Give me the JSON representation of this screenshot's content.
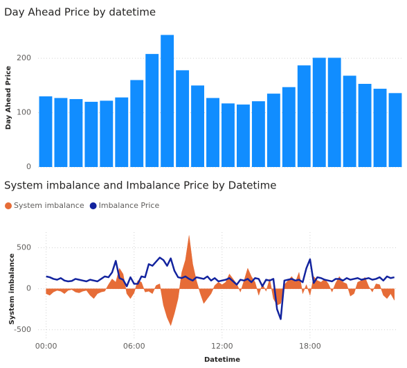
{
  "chart_data": [
    {
      "type": "bar",
      "title": "Day Ahead Price by datetime",
      "y_label": "Day Ahead Price",
      "categories": [
        null,
        null,
        null,
        null,
        null,
        null,
        null,
        null,
        null,
        null,
        null,
        null,
        null,
        null,
        null,
        null,
        null,
        null,
        null,
        null,
        null,
        null,
        null,
        null
      ],
      "values": [
        130,
        127,
        125,
        120,
        122,
        128,
        160,
        208,
        243,
        178,
        150,
        127,
        117,
        115,
        121,
        135,
        147,
        187,
        201,
        201,
        168,
        153,
        144,
        136
      ],
      "color": "#118DFF",
      "ylim": [
        0,
        255
      ],
      "yticks": [
        0,
        100,
        200
      ],
      "grid": true
    },
    {
      "type": "line",
      "title": "System imbalance and Imbalance Price by Datetime",
      "x_label": "Datetime",
      "y_label": "System imbalance",
      "legend": "top-left",
      "x": [
        0,
        0.25,
        0.5,
        0.75,
        1,
        1.25,
        1.5,
        1.75,
        2,
        2.25,
        2.5,
        2.75,
        3,
        3.25,
        3.5,
        3.75,
        4,
        4.25,
        4.5,
        4.75,
        5,
        5.25,
        5.5,
        5.75,
        6,
        6.25,
        6.5,
        6.75,
        7,
        7.25,
        7.5,
        7.75,
        8,
        8.25,
        8.5,
        8.75,
        9,
        9.25,
        9.5,
        9.75,
        10,
        10.25,
        10.5,
        10.75,
        11,
        11.25,
        11.5,
        11.75,
        12,
        12.25,
        12.5,
        12.75,
        13,
        13.25,
        13.5,
        13.75,
        14,
        14.25,
        14.5,
        14.75,
        15,
        15.25,
        15.5,
        15.75,
        16,
        16.25,
        16.5,
        16.75,
        17,
        17.25,
        17.5,
        17.75,
        18,
        18.25,
        18.5,
        18.75,
        19,
        19.25,
        19.5,
        19.75,
        20,
        20.25,
        20.5,
        20.75,
        21,
        21.25,
        21.5,
        21.75,
        22,
        22.25,
        22.5,
        22.75,
        23,
        23.25,
        23.5,
        23.75
      ],
      "series": [
        {
          "name": "System imbalance",
          "color": "#E66C37",
          "kind": "area",
          "values": [
            -60,
            -80,
            -40,
            -20,
            -30,
            -60,
            -20,
            -10,
            -40,
            -50,
            -30,
            -20,
            -80,
            -120,
            -60,
            -40,
            -30,
            50,
            120,
            80,
            250,
            180,
            -60,
            -120,
            -50,
            100,
            80,
            -40,
            -30,
            -60,
            40,
            60,
            -200,
            -350,
            -450,
            -300,
            -120,
            200,
            350,
            650,
            300,
            100,
            -50,
            -180,
            -120,
            -60,
            40,
            80,
            50,
            80,
            180,
            120,
            60,
            -40,
            100,
            250,
            150,
            80,
            -80,
            60,
            -30,
            120,
            -120,
            -200,
            -180,
            50,
            100,
            150,
            80,
            200,
            -60,
            50,
            -80,
            150,
            100,
            80,
            120,
            60,
            -40,
            70,
            150,
            80,
            60,
            -90,
            -60,
            80,
            100,
            140,
            30,
            -40,
            60,
            50,
            -80,
            -120,
            -60,
            -140
          ]
        },
        {
          "name": "Imbalance Price",
          "color": "#12239E",
          "kind": "line",
          "values": [
            150,
            140,
            120,
            110,
            130,
            100,
            90,
            95,
            120,
            110,
            100,
            90,
            110,
            100,
            90,
            120,
            150,
            140,
            200,
            340,
            130,
            110,
            30,
            140,
            60,
            60,
            150,
            140,
            300,
            280,
            330,
            380,
            350,
            280,
            370,
            220,
            140,
            130,
            150,
            120,
            100,
            140,
            130,
            120,
            150,
            100,
            130,
            90,
            100,
            110,
            130,
            90,
            50,
            110,
            100,
            120,
            80,
            130,
            120,
            30,
            110,
            100,
            120,
            -250,
            -370,
            100,
            110,
            120,
            100,
            110,
            80,
            250,
            360,
            70,
            140,
            130,
            110,
            100,
            90,
            120,
            120,
            100,
            130,
            110,
            120,
            130,
            110,
            120,
            130,
            110,
            120,
            140,
            100,
            150,
            130,
            140
          ]
        }
      ],
      "xlim": [
        -0.55,
        24
      ],
      "xticks": [
        {
          "value": 0,
          "label": "00:00"
        },
        {
          "value": 6,
          "label": "06:00"
        },
        {
          "value": 12,
          "label": "12:00"
        },
        {
          "value": 18,
          "label": "18:00"
        }
      ],
      "ylim": [
        -620,
        690
      ],
      "yticks": [
        -500,
        0,
        500
      ],
      "grid": true
    }
  ]
}
